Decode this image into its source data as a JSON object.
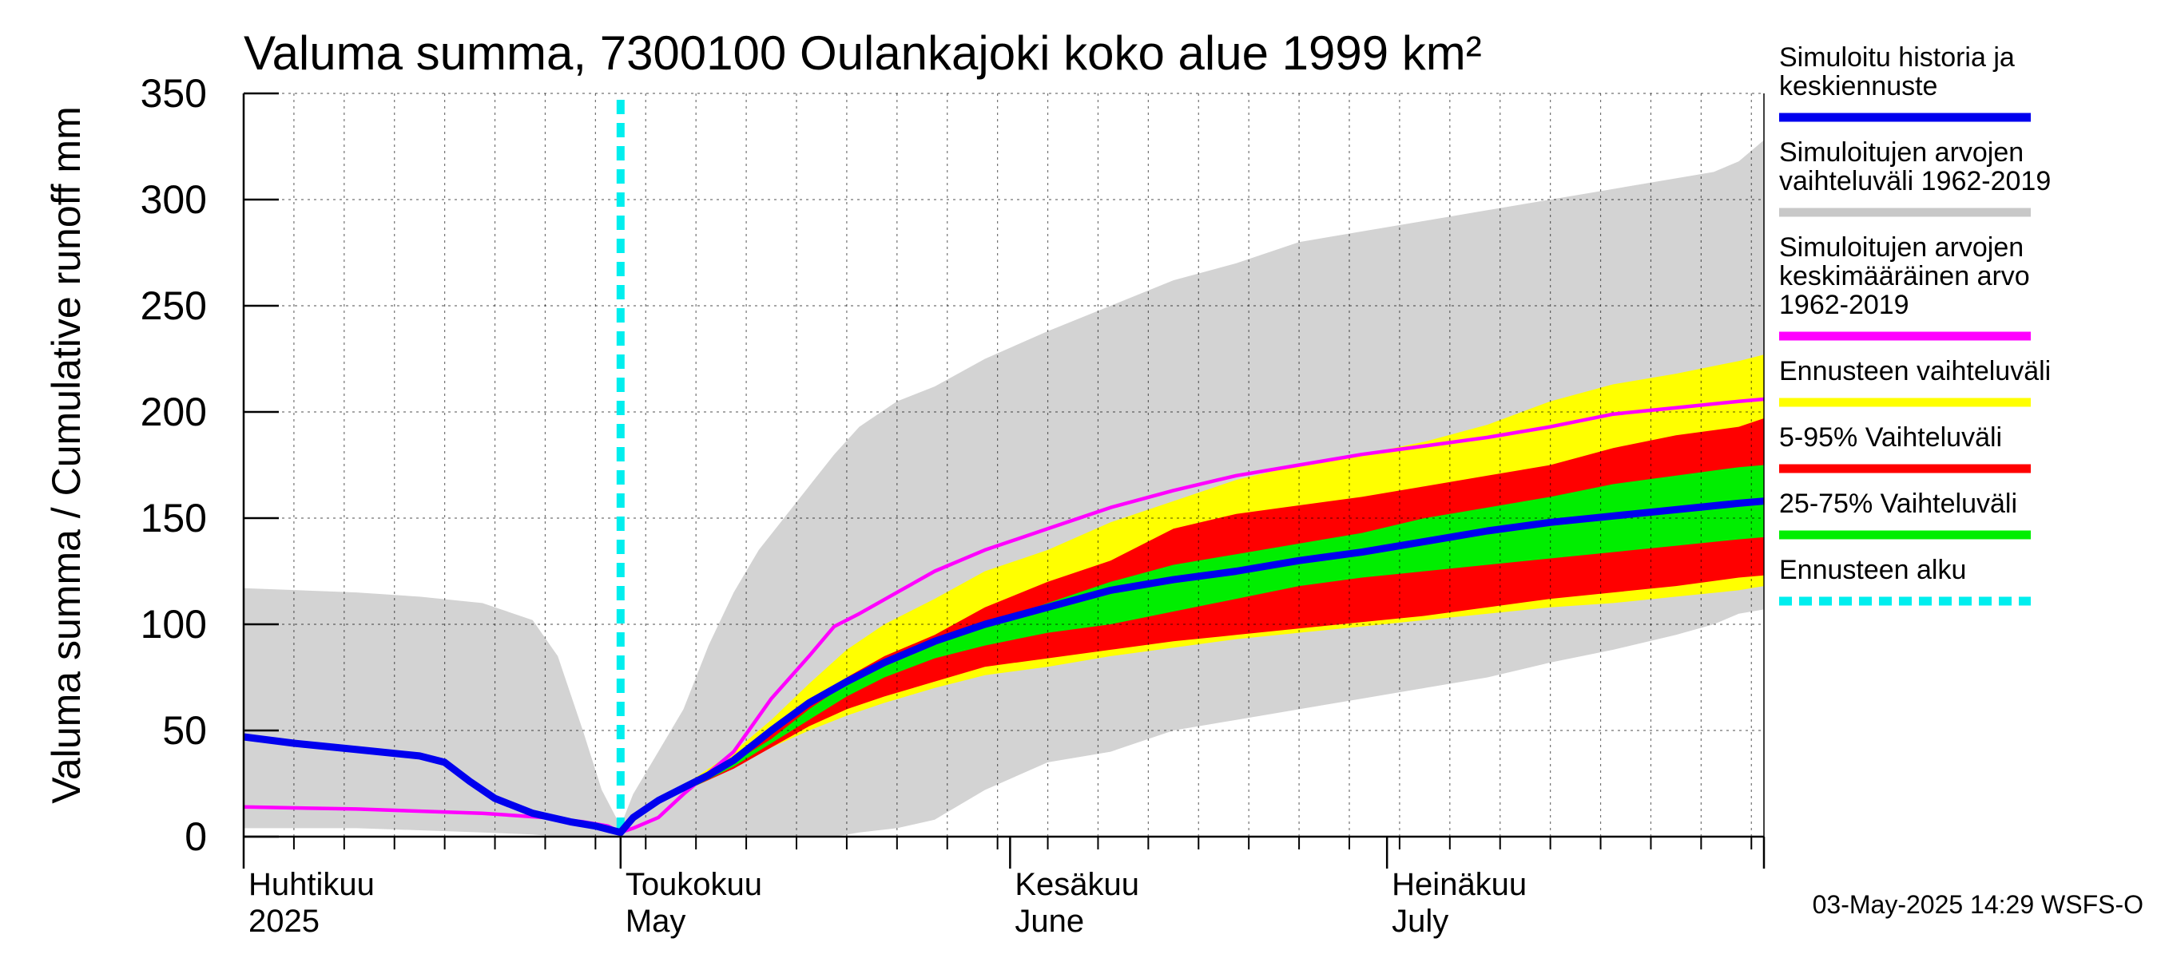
{
  "chart_data": {
    "type": "area",
    "title": "Valuma summa, 7300100 Oulankajoki koko alue 1999 km²",
    "ylabel": "Valuma summa / Cumulative runoff    mm",
    "ylim": [
      0,
      350
    ],
    "yticks": [
      0,
      50,
      100,
      150,
      200,
      250,
      300,
      350
    ],
    "x_unit": "day of year 2025",
    "xlim": [
      91,
      212
    ],
    "grid": true,
    "month_labels": [
      {
        "line1": "Huhtikuu",
        "line2": "2025",
        "day": 91
      },
      {
        "line1": "Toukokuu",
        "line2": "May",
        "day": 121
      },
      {
        "line1": "Kesäkuu",
        "line2": "June",
        "day": 152
      },
      {
        "line1": "Heinäkuu",
        "line2": "July",
        "day": 182
      }
    ],
    "forecast_start_day": 121,
    "series": [
      {
        "name": "Simuloitujen arvojen vaihteluväli 1962-2019",
        "kind": "band",
        "color": "#d3d3d3",
        "x": [
          91,
          100,
          105,
          110,
          114,
          116,
          118,
          119.5,
          121,
          122,
          124,
          126,
          128,
          130,
          132,
          134,
          136,
          138,
          140,
          143,
          146,
          150,
          155,
          160,
          165,
          170,
          175,
          180,
          185,
          190,
          195,
          200,
          205,
          208,
          210,
          212
        ],
        "upper": [
          117,
          115,
          113,
          110,
          102,
          85,
          50,
          22,
          5,
          20,
          40,
          60,
          90,
          115,
          135,
          150,
          165,
          180,
          193,
          205,
          212,
          225,
          238,
          250,
          262,
          270,
          280,
          285,
          290,
          295,
          300,
          305,
          310,
          313,
          318,
          328
        ],
        "lower": [
          4,
          4,
          3,
          2,
          1,
          0,
          0,
          0,
          0,
          0,
          0,
          0,
          0,
          0,
          0,
          0,
          0,
          0,
          2,
          4,
          8,
          22,
          35,
          40,
          50,
          55,
          60,
          65,
          70,
          75,
          82,
          88,
          95,
          100,
          105,
          107
        ]
      },
      {
        "name": "Ennusteen vaihteluväli",
        "kind": "band",
        "color": "#ffff00",
        "x": [
          121,
          124,
          127,
          130,
          133,
          136,
          139,
          142,
          146,
          150,
          155,
          160,
          165,
          170,
          175,
          180,
          185,
          190,
          195,
          200,
          205,
          210,
          212
        ],
        "upper": [
          2,
          18,
          28,
          40,
          55,
          72,
          88,
          100,
          112,
          125,
          135,
          148,
          158,
          168,
          175,
          180,
          186,
          194,
          205,
          213,
          218,
          224,
          227
        ],
        "lower": [
          2,
          16,
          24,
          33,
          42,
          50,
          57,
          63,
          70,
          76,
          80,
          85,
          89,
          93,
          96,
          99,
          102,
          105,
          108,
          110,
          113,
          116,
          118
        ]
      },
      {
        "name": "5-95% Vaihteluväli",
        "kind": "band",
        "color": "#ff0000",
        "x": [
          121,
          124,
          127,
          130,
          133,
          136,
          139,
          142,
          146,
          150,
          155,
          160,
          165,
          170,
          175,
          180,
          185,
          190,
          195,
          200,
          205,
          210,
          212
        ],
        "upper": [
          2,
          16,
          25,
          35,
          48,
          62,
          75,
          85,
          95,
          108,
          120,
          130,
          145,
          152,
          156,
          160,
          165,
          170,
          175,
          183,
          189,
          193,
          197
        ],
        "lower": [
          2,
          16,
          24,
          32,
          42,
          52,
          60,
          66,
          73,
          80,
          84,
          88,
          92,
          95,
          98,
          101,
          104,
          108,
          112,
          115,
          118,
          122,
          123
        ]
      },
      {
        "name": "25-75% Vaihteluväli",
        "kind": "band",
        "color": "#00ee00",
        "x": [
          121,
          124,
          127,
          130,
          133,
          136,
          139,
          142,
          146,
          150,
          155,
          160,
          165,
          170,
          175,
          180,
          185,
          190,
          195,
          200,
          205,
          210,
          212
        ],
        "upper": [
          2,
          16,
          25,
          35,
          46,
          60,
          72,
          82,
          92,
          100,
          110,
          120,
          128,
          133,
          138,
          143,
          150,
          155,
          160,
          166,
          170,
          174,
          175
        ],
        "lower": [
          2,
          16,
          24,
          33,
          44,
          55,
          66,
          75,
          84,
          90,
          96,
          100,
          106,
          112,
          118,
          122,
          125,
          128,
          131,
          134,
          137,
          140,
          141
        ]
      },
      {
        "name": "Simuloitujen arvojen keskimääräinen arvo 1962-2019",
        "kind": "line",
        "color": "#ff00ff",
        "x": [
          91,
          100,
          110,
          115,
          118,
          120,
          121,
          122,
          124,
          126,
          128,
          130,
          133,
          136,
          138,
          140,
          143,
          146,
          150,
          155,
          160,
          165,
          170,
          175,
          180,
          185,
          190,
          195,
          200,
          205,
          210,
          212
        ],
        "values": [
          14,
          13,
          11,
          9,
          7,
          5,
          2,
          4,
          9,
          20,
          30,
          40,
          65,
          85,
          99,
          105,
          115,
          125,
          135,
          145,
          155,
          163,
          170,
          175,
          180,
          184,
          188,
          193,
          199,
          202,
          205,
          206
        ]
      },
      {
        "name": "Simuloitu historia ja keskiennuste",
        "kind": "line",
        "color": "#0000ee",
        "x": [
          91,
          95,
          100,
          105,
          107,
          109,
          111,
          114,
          117,
          119,
          121,
          122,
          124,
          126,
          128,
          130,
          133,
          136,
          139,
          142,
          146,
          150,
          155,
          160,
          165,
          170,
          175,
          180,
          185,
          190,
          195,
          200,
          205,
          210,
          212
        ],
        "values": [
          47,
          44,
          41,
          38,
          35,
          26,
          18,
          11,
          7,
          5,
          2,
          9,
          17,
          23,
          29,
          36,
          50,
          63,
          73,
          82,
          92,
          100,
          108,
          116,
          121,
          125,
          130,
          134,
          139,
          144,
          148,
          151,
          154,
          157,
          158
        ]
      }
    ],
    "legend": {
      "placement": "right",
      "entries": [
        {
          "lines": [
            "Simuloitu historia ja",
            "keskiennuste"
          ],
          "color": "#0000ee",
          "style": "solid"
        },
        {
          "lines": [
            "Simuloitujen arvojen",
            "vaihteluväli 1962-2019"
          ],
          "color": "#c8c8c8",
          "style": "solid"
        },
        {
          "lines": [
            "Simuloitujen arvojen",
            "keskimääräinen arvo",
            "   1962-2019"
          ],
          "color": "#ff00ff",
          "style": "solid"
        },
        {
          "lines": [
            "Ennusteen vaihteluväli"
          ],
          "color": "#ffff00",
          "style": "solid"
        },
        {
          "lines": [
            "5-95% Vaihteluväli"
          ],
          "color": "#ff0000",
          "style": "solid"
        },
        {
          "lines": [
            "25-75% Vaihteluväli"
          ],
          "color": "#00ee00",
          "style": "solid"
        },
        {
          "lines": [
            "Ennusteen alku"
          ],
          "color": "#00eeee",
          "style": "dashed"
        }
      ]
    },
    "footer": "03-May-2025 14:29 WSFS-O"
  }
}
